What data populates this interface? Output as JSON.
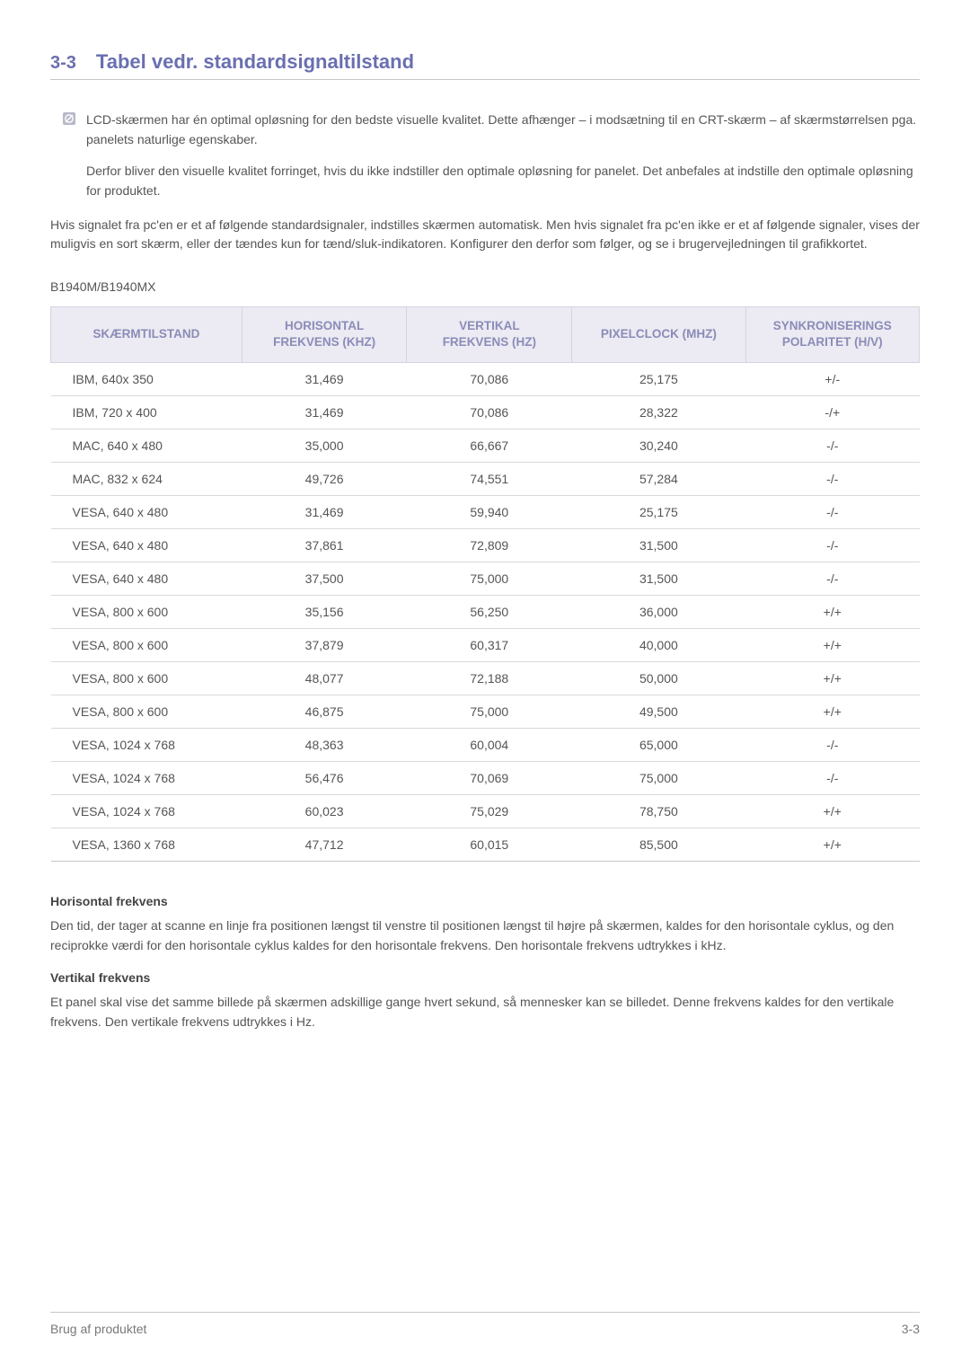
{
  "heading": {
    "number": "3-3",
    "title": "Tabel vedr. standardsignaltilstand"
  },
  "note": {
    "p1": "LCD-skærmen har én optimal opløsning for den bedste visuelle kvalitet. Dette afhænger – i modsætning til en CRT-skærm – af skærmstørrelsen pga. panelets naturlige egenskaber.",
    "p2": "Derfor bliver den visuelle kvalitet forringet, hvis du ikke indstiller den optimale opløsning for panelet. Det anbefales at indstille den optimale opløsning for produktet."
  },
  "intro": "Hvis signalet fra pc'en er et af følgende standardsignaler, indstilles skærmen automatisk. Men hvis signalet fra pc'en ikke er et af følgende signaler, vises der muligvis en sort skærm, eller der tændes kun for tænd/sluk-indikatoren. Konfigurer den derfor som følger, og se i brugervejledningen til grafikkortet.",
  "model": "B1940M/B1940MX",
  "table": {
    "columns": [
      "SKÆRMTILSTAND",
      "HORISONTAL FREKVENS (KHZ)",
      "VERTIKAL FREKVENS (HZ)",
      "PIXELCLOCK (MHZ)",
      "SYNKRONISERINGS POLARITET (H/V)"
    ],
    "rows": [
      [
        "IBM, 640x 350",
        "31,469",
        "70,086",
        "25,175",
        "+/-"
      ],
      [
        "IBM, 720 x 400",
        "31,469",
        "70,086",
        "28,322",
        "-/+"
      ],
      [
        "MAC, 640 x 480",
        "35,000",
        "66,667",
        "30,240",
        "-/-"
      ],
      [
        "MAC, 832 x 624",
        "49,726",
        "74,551",
        "57,284",
        "-/-"
      ],
      [
        "VESA, 640 x 480",
        "31,469",
        "59,940",
        "25,175",
        "-/-"
      ],
      [
        "VESA, 640 x 480",
        "37,861",
        "72,809",
        "31,500",
        "-/-"
      ],
      [
        "VESA, 640 x 480",
        "37,500",
        "75,000",
        "31,500",
        "-/-"
      ],
      [
        "VESA, 800 x 600",
        "35,156",
        "56,250",
        "36,000",
        "+/+"
      ],
      [
        "VESA, 800 x 600",
        "37,879",
        "60,317",
        "40,000",
        "+/+"
      ],
      [
        "VESA, 800 x 600",
        "48,077",
        "72,188",
        "50,000",
        "+/+"
      ],
      [
        "VESA, 800 x 600",
        "46,875",
        "75,000",
        "49,500",
        "+/+"
      ],
      [
        "VESA, 1024 x 768",
        "48,363",
        "60,004",
        "65,000",
        "-/-"
      ],
      [
        "VESA, 1024 x 768",
        "56,476",
        "70,069",
        "75,000",
        "-/-"
      ],
      [
        "VESA, 1024 x 768",
        "60,023",
        "75,029",
        "78,750",
        "+/+"
      ],
      [
        "VESA, 1360 x 768",
        "47,712",
        "60,015",
        "85,500",
        "+/+"
      ]
    ],
    "header_bg": "#eceaf2",
    "header_color": "#8a8cb8",
    "border_color": "#d9d9d9",
    "col_widths": [
      "22%",
      "19%",
      "19%",
      "20%",
      "20%"
    ]
  },
  "definitions": {
    "h1": "Horisontal frekvens",
    "p1": "Den tid, der tager at scanne en linje fra positionen længst til venstre til positionen længst til højre på skærmen, kaldes for den horisontale cyklus, og den reciprokke værdi for den horisontale cyklus kaldes for den horisontale frekvens. Den horisontale frekvens udtrykkes i kHz.",
    "h2": "Vertikal frekvens",
    "p2": "Et panel skal vise det samme billede på skærmen adskillige gange hvert sekund, så mennesker kan se billedet. Denne frekvens kaldes for den vertikale frekvens. Den vertikale frekvens udtrykkes i Hz."
  },
  "footer": {
    "left": "Brug af produktet",
    "right": "3-3"
  },
  "colors": {
    "accent": "#6a6fb0",
    "text": "#555555",
    "rule": "#c7c7c7"
  }
}
